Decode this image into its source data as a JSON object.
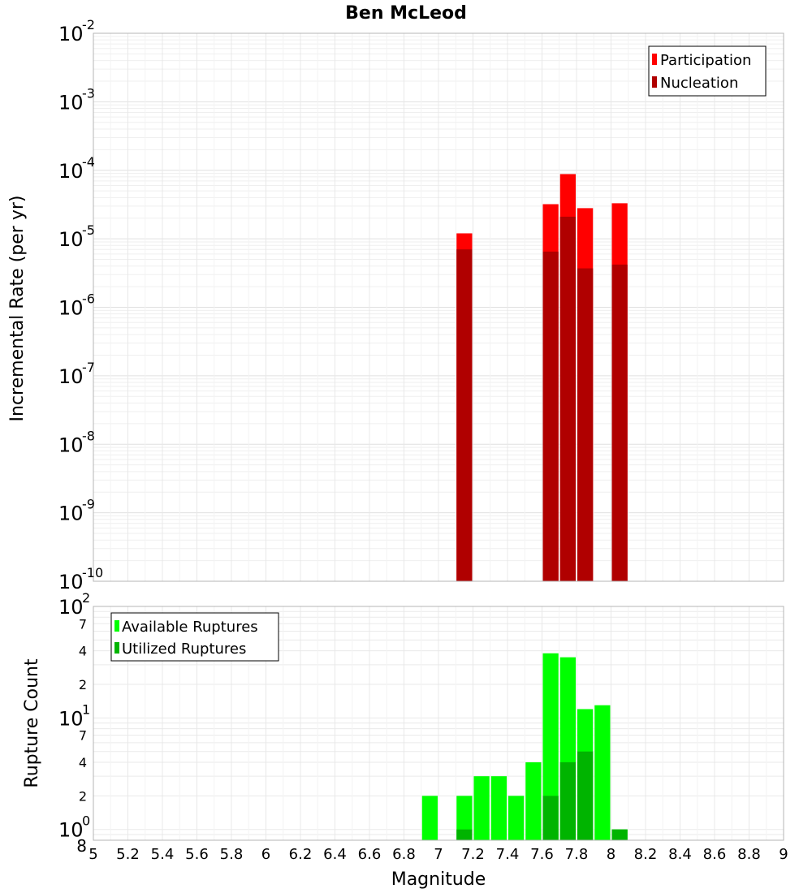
{
  "chart_data": [
    {
      "type": "bar",
      "title": "Ben McLeod",
      "xlabel": "",
      "ylabel": "Incremental Rate (per yr)",
      "yscale": "log",
      "xlim": [
        5,
        9
      ],
      "ylim": [
        1e-10,
        0.01
      ],
      "grid": true,
      "legend_position": "top-right",
      "y_ticks": [
        {
          "base": "10",
          "exp": "-10"
        },
        {
          "base": "10",
          "exp": "-9"
        },
        {
          "base": "10",
          "exp": "-8"
        },
        {
          "base": "10",
          "exp": "-7"
        },
        {
          "base": "10",
          "exp": "-6"
        },
        {
          "base": "10",
          "exp": "-5"
        },
        {
          "base": "10",
          "exp": "-4"
        },
        {
          "base": "10",
          "exp": "-3"
        },
        {
          "base": "10",
          "exp": "-2"
        }
      ],
      "bar_width": 0.1,
      "series": [
        {
          "name": "Participation",
          "color": "#ff0000",
          "x": [
            7.15,
            7.65,
            7.75,
            7.85,
            8.05
          ],
          "values": [
            1.2e-05,
            3.2e-05,
            8.8e-05,
            2.8e-05,
            3.3e-05
          ]
        },
        {
          "name": "Nucleation",
          "color": "#b00000",
          "x": [
            7.15,
            7.65,
            7.75,
            7.85,
            8.05
          ],
          "values": [
            7e-06,
            6.5e-06,
            2.1e-05,
            3.7e-06,
            4.2e-06
          ]
        }
      ]
    },
    {
      "type": "bar",
      "xlabel": "Magnitude",
      "ylabel": "Rupture Count",
      "yscale": "log",
      "xlim": [
        5,
        9
      ],
      "ylim": [
        0.8,
        100
      ],
      "grid": true,
      "legend_position": "top-left",
      "x_ticks": [
        "5",
        "5.2",
        "5.4",
        "5.6",
        "5.8",
        "6",
        "6.2",
        "6.4",
        "6.6",
        "6.8",
        "7",
        "7.2",
        "7.4",
        "7.6",
        "7.8",
        "8",
        "8.2",
        "8.4",
        "8.6",
        "8.8",
        "9"
      ],
      "y_major_ticks": [
        {
          "base": "10",
          "exp": "0"
        },
        {
          "base": "10",
          "exp": "1"
        },
        {
          "base": "10",
          "exp": "2"
        }
      ],
      "y_minor_ticks": [
        {
          "value": 0.8,
          "label": "8"
        },
        {
          "value": 2,
          "label": "2"
        },
        {
          "value": 4,
          "label": "4"
        },
        {
          "value": 7,
          "label": "7"
        },
        {
          "value": 20,
          "label": "2"
        },
        {
          "value": 40,
          "label": "4"
        },
        {
          "value": 70,
          "label": "7"
        }
      ],
      "bar_width": 0.1,
      "series": [
        {
          "name": "Available Ruptures",
          "color": "#00ff00",
          "x": [
            6.95,
            7.15,
            7.25,
            7.35,
            7.45,
            7.55,
            7.65,
            7.75,
            7.85,
            7.95,
            8.05
          ],
          "values": [
            2,
            2,
            3,
            3,
            2,
            4,
            38,
            35,
            12,
            13,
            1
          ]
        },
        {
          "name": "Utilized Ruptures",
          "color": "#00b400",
          "x": [
            7.15,
            7.65,
            7.75,
            7.85,
            8.05
          ],
          "values": [
            1,
            2,
            4,
            5,
            1
          ]
        }
      ]
    }
  ]
}
